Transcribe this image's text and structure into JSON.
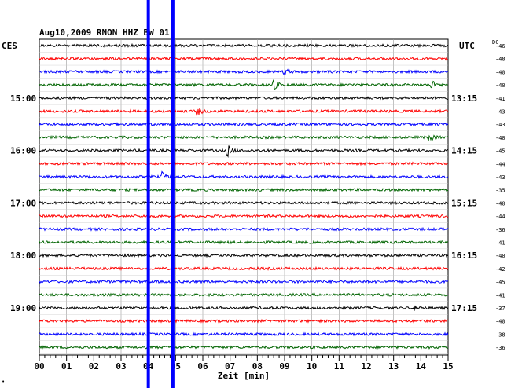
{
  "header": {
    "title": "Aug10,2009   RNON HHZ BW 01",
    "left_tz": "CES",
    "right_tz": "UTC",
    "dc_label": "DC"
  },
  "chart_data": {
    "type": "line",
    "title": "Aug10,2009   RNON HHZ BW 01",
    "xlabel": "Zeit [min]",
    "xlim": [
      0,
      15
    ],
    "x_ticks": [
      "00",
      "01",
      "02",
      "03",
      "04",
      "05",
      "06",
      "07",
      "08",
      "09",
      "10",
      "11",
      "12",
      "13",
      "14",
      "15"
    ],
    "left_time_labels": [
      {
        "row": 4,
        "text": "15:00"
      },
      {
        "row": 8,
        "text": "16:00"
      },
      {
        "row": 12,
        "text": "17:00"
      },
      {
        "row": 16,
        "text": "18:00"
      },
      {
        "row": 20,
        "text": "19:00"
      }
    ],
    "right_time_labels": [
      {
        "row": 4,
        "text": "13:15"
      },
      {
        "row": 8,
        "text": "14:15"
      },
      {
        "row": 12,
        "text": "15:15"
      },
      {
        "row": 16,
        "text": "16:15"
      },
      {
        "row": 20,
        "text": "17:15"
      }
    ],
    "dc_offsets": [
      "-46",
      "-48",
      "-40",
      "-40",
      "-41",
      "-43",
      "-43",
      "-40",
      "-45",
      "-44",
      "-43",
      "-35",
      "-40",
      "-44",
      "-36",
      "-41",
      "-40",
      "-42",
      "-45",
      "-41",
      "-37",
      "-40",
      "-38",
      "-36"
    ],
    "trace_colors": [
      "#000000",
      "#ff0000",
      "#0000ff",
      "#006400"
    ],
    "grid": true,
    "markers_min": [
      4.0,
      4.9
    ],
    "marker_color": "#0000ff",
    "events": [
      {
        "row": 2,
        "t": 9.0,
        "amp": 4
      },
      {
        "row": 3,
        "t": 8.6,
        "amp": 6
      },
      {
        "row": 3,
        "t": 14.4,
        "amp": 5
      },
      {
        "row": 5,
        "t": 5.8,
        "amp": 5
      },
      {
        "row": 7,
        "t": 14.3,
        "amp": 5
      },
      {
        "row": 8,
        "t": 6.9,
        "amp": 8
      },
      {
        "row": 10,
        "t": 4.5,
        "amp": 5
      },
      {
        "row": 20,
        "t": 13.8,
        "amp": 3
      }
    ]
  }
}
